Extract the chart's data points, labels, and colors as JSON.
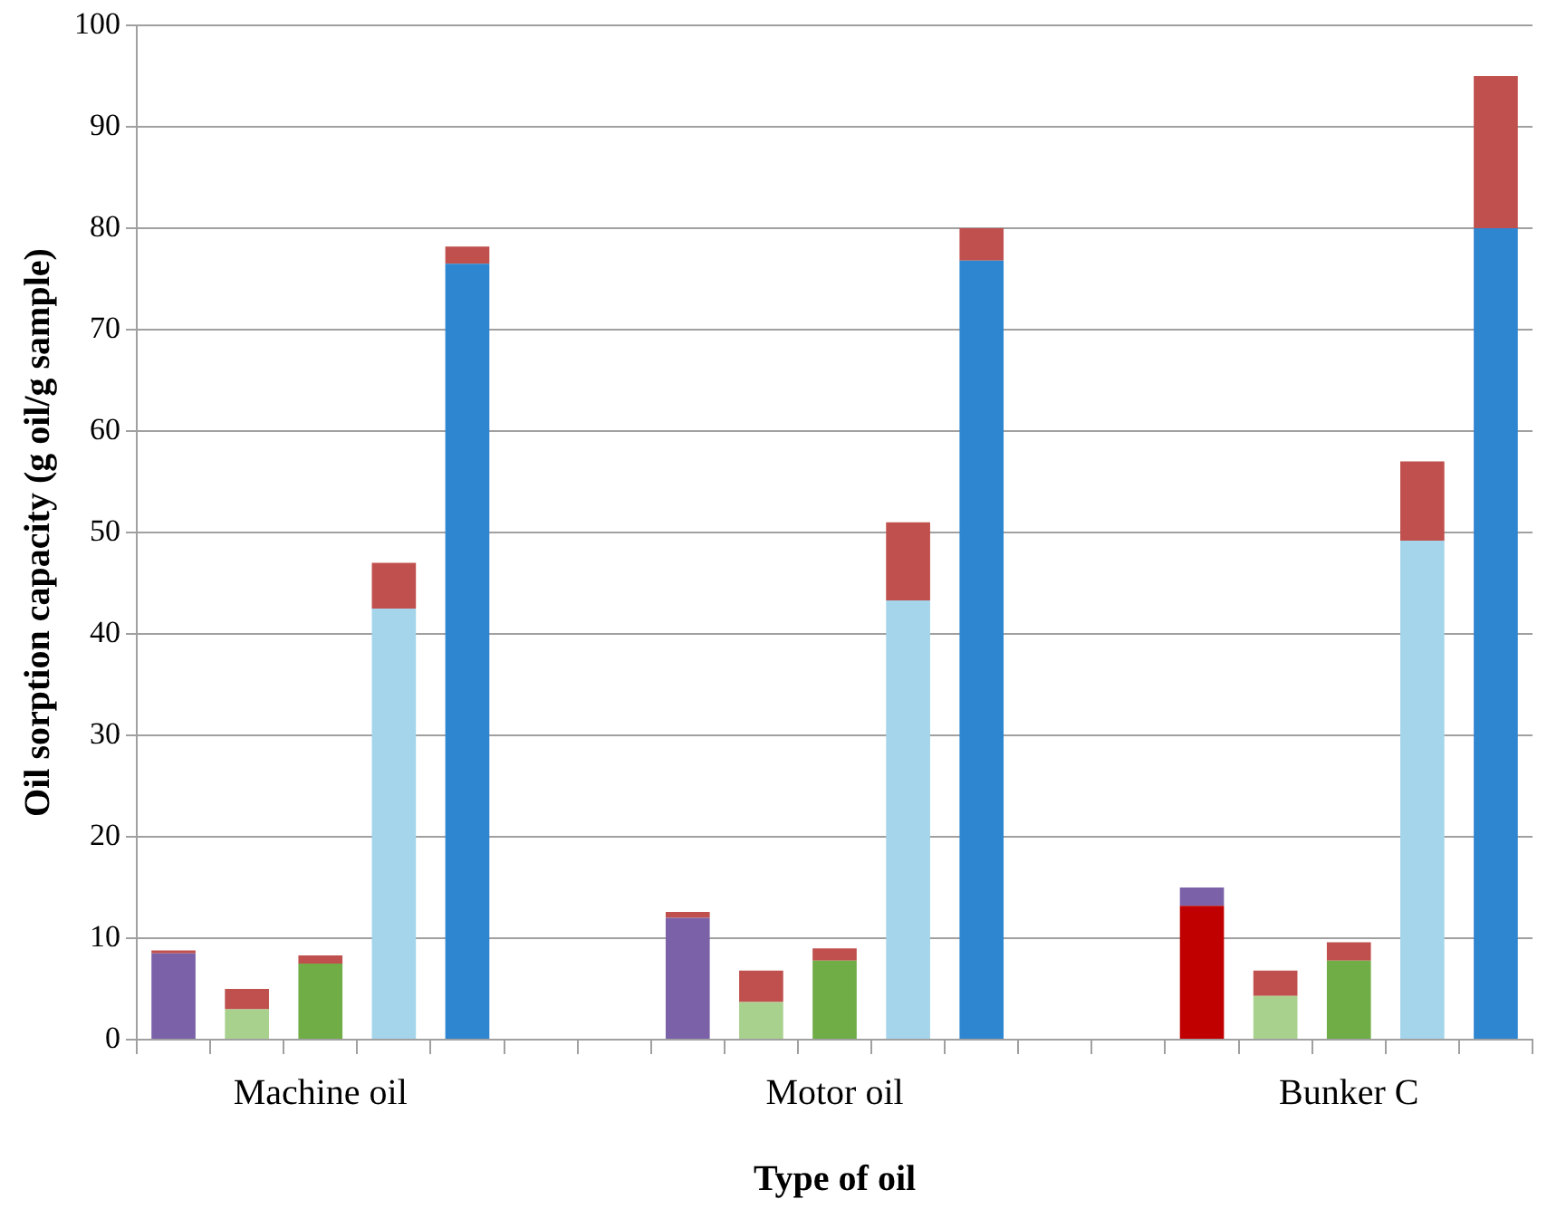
{
  "chart_data": {
    "type": "bar",
    "stacked": true,
    "xlabel": "Type of oil",
    "ylabel": "Oil sorption capacity (g oil/g sample)",
    "categories": [
      null,
      null,
      "Machine oil",
      null,
      null,
      null,
      null,
      null,
      null,
      "Motor oil",
      null,
      null,
      null,
      null,
      null,
      null,
      "Bunker C",
      null,
      null
    ],
    "series": [
      {
        "colors": [
          "#7b62a8",
          "#a9d18e",
          "#70ad47",
          "#a5d5ea",
          "#2e86d0",
          null,
          null,
          "#7b62a8",
          "#a9d18e",
          "#70ad47",
          "#a5d5ea",
          "#2e86d0",
          null,
          null,
          "#c00000",
          "#a9d18e",
          "#70ad47",
          "#a5d5ea",
          "#2e86d0"
        ],
        "values": [
          8.5,
          3,
          7.5,
          42.5,
          76.5,
          null,
          null,
          12,
          3.7,
          7.8,
          43.3,
          76.8,
          null,
          null,
          13.2,
          4.3,
          7.8,
          49.2,
          80
        ]
      },
      {
        "colors": [
          "#c0504d",
          "#c0504d",
          "#c0504d",
          "#c0504d",
          "#c0504d",
          null,
          null,
          "#c0504d",
          "#c0504d",
          "#c0504d",
          "#c0504d",
          "#c0504d",
          null,
          null,
          "#7b62a8",
          "#c0504d",
          "#c0504d",
          "#c0504d",
          "#c0504d"
        ],
        "values": [
          0.3,
          2,
          0.8,
          4.5,
          1.7,
          null,
          null,
          0.6,
          3.1,
          1.2,
          7.7,
          3.2,
          null,
          null,
          1.8,
          2.5,
          1.8,
          7.8,
          15
        ]
      }
    ],
    "ylim": [
      0,
      100
    ],
    "yticks": [
      0,
      10,
      20,
      30,
      40,
      50,
      60,
      70,
      80,
      90,
      100
    ],
    "grid": "y",
    "legend": false
  }
}
